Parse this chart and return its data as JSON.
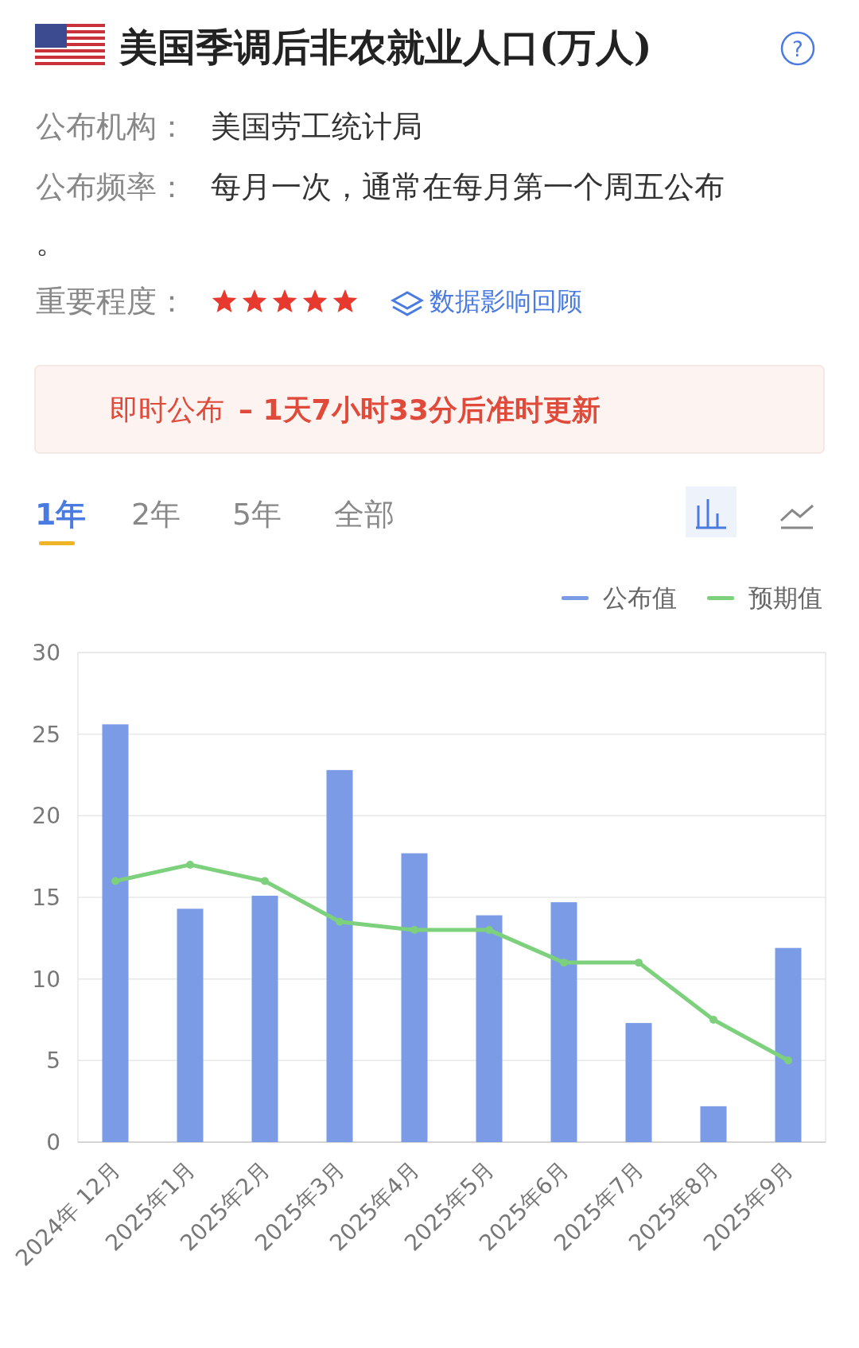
{
  "chart_data": {
    "type": "bar",
    "title": "美国季调后非农就业人口(万人)",
    "annotations": [
      "?",
      "公布机构：",
      "美国劳工统计局",
      "公布频率：",
      "每月一次，通常在每月第一个周五公布。",
      "重要程度：",
      "数据影响回顾",
      "即时公布",
      "– 1天7小时33分后准时更新",
      "1年",
      "2年",
      "5年",
      "全部"
    ],
    "categories": [
      "2024年 12月",
      "2025年1月",
      "2025年2月",
      "2025年3月",
      "2025年4月",
      "2025年5月",
      "2025年6月",
      "2025年7月",
      "2025年8月",
      "2025年9月"
    ],
    "series": [
      {
        "name": "公布值",
        "color": "#7b9be6",
        "values": [
          25.6,
          14.3,
          15.1,
          22.8,
          17.7,
          13.9,
          14.7,
          7.3,
          2.2,
          11.9
        ]
      },
      {
        "name": "预期值",
        "type": "line",
        "color": "#7dd17d",
        "marker": "circle",
        "values": [
          16,
          17,
          16,
          13.5,
          13,
          13,
          11,
          11,
          7.5,
          5
        ]
      }
    ],
    "ylim": [
      0,
      30
    ],
    "yticks": [
      0,
      5,
      10,
      15,
      20,
      25,
      30
    ],
    "grid": "y",
    "legend": "top right"
  }
}
